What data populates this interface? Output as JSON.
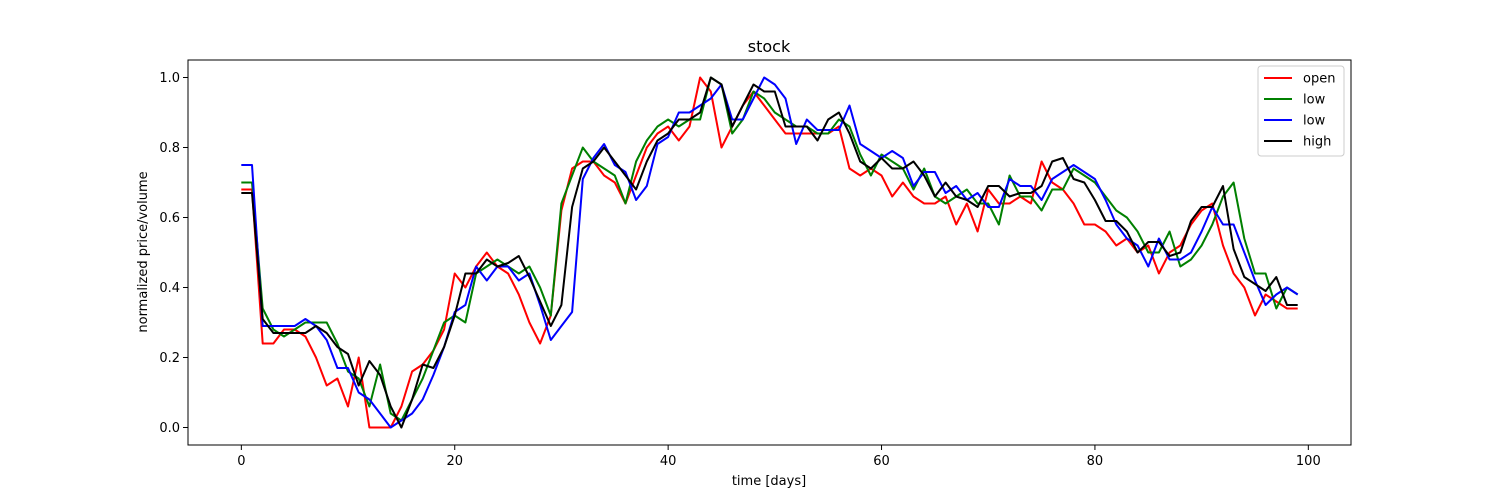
{
  "chart_data": {
    "type": "line",
    "title": "stock",
    "xlabel": "time [days]",
    "ylabel": "normalized price/volume",
    "xlim": [
      -5,
      104
    ],
    "ylim": [
      -0.05,
      1.05
    ],
    "xticks": [
      0,
      20,
      40,
      60,
      80,
      100
    ],
    "yticks": [
      0.0,
      0.2,
      0.4,
      0.6,
      0.8,
      1.0
    ],
    "xtick_labels": [
      "0",
      "20",
      "40",
      "60",
      "80",
      "100"
    ],
    "ytick_labels": [
      "0.0",
      "0.2",
      "0.4",
      "0.6",
      "0.8",
      "1.0"
    ],
    "grid": false,
    "legend_position": "top-right",
    "series": [
      {
        "name": "open",
        "color": "#ff0000",
        "values": [
          0.68,
          0.68,
          0.24,
          0.24,
          0.28,
          0.28,
          0.26,
          0.2,
          0.12,
          0.14,
          0.06,
          0.2,
          0.0,
          0.0,
          0.0,
          0.06,
          0.16,
          0.18,
          0.22,
          0.28,
          0.44,
          0.4,
          0.46,
          0.5,
          0.46,
          0.44,
          0.38,
          0.3,
          0.24,
          0.32,
          0.62,
          0.74,
          0.76,
          0.76,
          0.72,
          0.7,
          0.64,
          0.72,
          0.8,
          0.84,
          0.86,
          0.82,
          0.86,
          1.0,
          0.96,
          0.8,
          0.86,
          0.92,
          0.96,
          0.92,
          0.88,
          0.84,
          0.84,
          0.84,
          0.84,
          0.84,
          0.86,
          0.74,
          0.72,
          0.74,
          0.72,
          0.66,
          0.7,
          0.66,
          0.64,
          0.64,
          0.66,
          0.58,
          0.64,
          0.56,
          0.68,
          0.64,
          0.64,
          0.66,
          0.64,
          0.76,
          0.7,
          0.68,
          0.64,
          0.58,
          0.58,
          0.56,
          0.52,
          0.54,
          0.5,
          0.52,
          0.44,
          0.5,
          0.52,
          0.58,
          0.62,
          0.64,
          0.52,
          0.44,
          0.4,
          0.32,
          0.38,
          0.36,
          0.34,
          0.34
        ]
      },
      {
        "name": "low",
        "color": "#008000",
        "values": [
          0.7,
          0.7,
          0.34,
          0.28,
          0.26,
          0.28,
          0.3,
          0.3,
          0.3,
          0.24,
          0.16,
          0.14,
          0.06,
          0.18,
          0.04,
          0.02,
          0.08,
          0.14,
          0.22,
          0.3,
          0.32,
          0.3,
          0.44,
          0.46,
          0.48,
          0.46,
          0.44,
          0.46,
          0.4,
          0.32,
          0.64,
          0.72,
          0.8,
          0.76,
          0.74,
          0.72,
          0.64,
          0.76,
          0.82,
          0.86,
          0.88,
          0.86,
          0.88,
          0.88,
          1.0,
          0.98,
          0.84,
          0.88,
          0.96,
          0.94,
          0.9,
          0.88,
          0.86,
          0.86,
          0.84,
          0.84,
          0.88,
          0.86,
          0.78,
          0.72,
          0.78,
          0.76,
          0.74,
          0.68,
          0.74,
          0.66,
          0.64,
          0.66,
          0.68,
          0.64,
          0.64,
          0.58,
          0.72,
          0.66,
          0.66,
          0.62,
          0.68,
          0.68,
          0.74,
          0.72,
          0.7,
          0.66,
          0.62,
          0.6,
          0.56,
          0.5,
          0.5,
          0.56,
          0.46,
          0.48,
          0.52,
          0.58,
          0.66,
          0.7,
          0.54,
          0.44,
          0.44,
          0.34,
          0.4,
          0.38
        ]
      },
      {
        "name": "low",
        "color": "#0000ff",
        "values": [
          0.75,
          0.75,
          0.29,
          0.29,
          0.29,
          0.29,
          0.31,
          0.29,
          0.25,
          0.17,
          0.17,
          0.1,
          0.08,
          0.04,
          0.0,
          0.02,
          0.04,
          0.08,
          0.15,
          0.23,
          0.33,
          0.35,
          0.46,
          0.42,
          0.46,
          0.46,
          0.42,
          0.44,
          0.35,
          0.25,
          0.29,
          0.33,
          0.71,
          0.77,
          0.81,
          0.75,
          0.73,
          0.65,
          0.69,
          0.81,
          0.83,
          0.9,
          0.9,
          0.92,
          0.94,
          0.98,
          0.88,
          0.88,
          0.94,
          1.0,
          0.98,
          0.94,
          0.81,
          0.88,
          0.85,
          0.85,
          0.85,
          0.92,
          0.81,
          0.79,
          0.77,
          0.79,
          0.77,
          0.69,
          0.73,
          0.73,
          0.67,
          0.69,
          0.65,
          0.67,
          0.63,
          0.63,
          0.71,
          0.69,
          0.69,
          0.65,
          0.71,
          0.73,
          0.75,
          0.73,
          0.71,
          0.65,
          0.58,
          0.54,
          0.52,
          0.46,
          0.54,
          0.48,
          0.48,
          0.5,
          0.56,
          0.63,
          0.58,
          0.58,
          0.5,
          0.42,
          0.35,
          0.38,
          0.4,
          0.38
        ]
      },
      {
        "name": "high",
        "color": "#000000",
        "values": [
          0.67,
          0.67,
          0.31,
          0.27,
          0.27,
          0.27,
          0.27,
          0.29,
          0.27,
          0.23,
          0.21,
          0.12,
          0.19,
          0.15,
          0.06,
          0.0,
          0.08,
          0.18,
          0.17,
          0.23,
          0.32,
          0.44,
          0.44,
          0.48,
          0.46,
          0.47,
          0.49,
          0.43,
          0.36,
          0.29,
          0.35,
          0.63,
          0.74,
          0.76,
          0.8,
          0.76,
          0.72,
          0.68,
          0.76,
          0.82,
          0.84,
          0.88,
          0.88,
          0.9,
          1.0,
          0.98,
          0.86,
          0.92,
          0.98,
          0.96,
          0.96,
          0.86,
          0.86,
          0.86,
          0.82,
          0.88,
          0.9,
          0.84,
          0.76,
          0.74,
          0.77,
          0.74,
          0.74,
          0.76,
          0.72,
          0.66,
          0.7,
          0.66,
          0.65,
          0.63,
          0.69,
          0.69,
          0.66,
          0.67,
          0.67,
          0.69,
          0.76,
          0.77,
          0.71,
          0.7,
          0.65,
          0.59,
          0.59,
          0.56,
          0.5,
          0.53,
          0.53,
          0.49,
          0.5,
          0.59,
          0.63,
          0.63,
          0.69,
          0.51,
          0.43,
          0.41,
          0.39,
          0.43,
          0.35,
          0.35
        ]
      }
    ]
  }
}
